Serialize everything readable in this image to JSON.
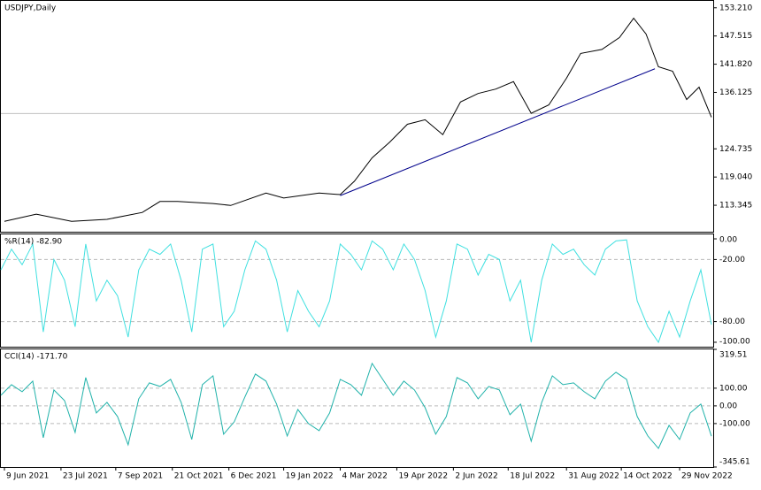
{
  "chart_data": [
    {
      "type": "line",
      "title": "USDJPY,Daily",
      "color": "#000000",
      "x": [
        2,
        20,
        40,
        60,
        80,
        90,
        100,
        120,
        130,
        150,
        160,
        180,
        192,
        200,
        210,
        220,
        230,
        240,
        250,
        260,
        270,
        280,
        290,
        300,
        310,
        320,
        328,
        340,
        350,
        358,
        365,
        372,
        380,
        388,
        395,
        402
      ],
      "values": [
        110.1,
        111.55,
        110.1,
        110.5,
        111.9,
        114.1,
        114.1,
        113.7,
        113.3,
        115.8,
        114.8,
        115.8,
        115.5,
        118.2,
        122.9,
        126.1,
        129.7,
        130.6,
        127.6,
        134.2,
        135.9,
        136.8,
        138.3,
        131.9,
        133.6,
        139.0,
        144.0,
        144.8,
        147.2,
        151.1,
        147.9,
        141.3,
        140.4,
        134.7,
        137.2,
        131.1
      ],
      "trendline": {
        "x": [
          192,
          370
        ],
        "values": [
          115.3,
          140.9
        ],
        "color": "#00008b"
      },
      "current_price": 131.85,
      "xlim": [
        0,
        403
      ],
      "ylim": [
        108.0,
        154.6
      ],
      "yticks": [
        {
          "value": 153.21,
          "label": "153.210"
        },
        147.515,
        {
          "value": 141.82,
          "label": "141.820"
        },
        136.125,
        124.735,
        {
          "value": 119.04,
          "label": "119.040"
        },
        113.345
      ]
    },
    {
      "type": "line",
      "title": "%R(14) -82.90",
      "color": "#40e0e0",
      "x": [
        0,
        6,
        12,
        18,
        24,
        30,
        36,
        42,
        48,
        54,
        60,
        66,
        72,
        78,
        84,
        90,
        96,
        102,
        108,
        114,
        120,
        126,
        132,
        138,
        144,
        150,
        156,
        162,
        168,
        174,
        180,
        186,
        192,
        198,
        204,
        210,
        216,
        222,
        228,
        234,
        240,
        246,
        252,
        258,
        264,
        270,
        276,
        282,
        288,
        294,
        300,
        306,
        312,
        318,
        324,
        330,
        336,
        342,
        348,
        354,
        360,
        366,
        372,
        378,
        384,
        390,
        396,
        402
      ],
      "values": [
        -30,
        -10,
        -25,
        -5,
        -90,
        -20,
        -40,
        -85,
        -5,
        -60,
        -40,
        -55,
        -95,
        -30,
        -10,
        -15,
        -5,
        -40,
        -90,
        -10,
        -5,
        -85,
        -70,
        -30,
        -2,
        -10,
        -40,
        -90,
        -50,
        -70,
        -85,
        -60,
        -5,
        -15,
        -30,
        -2,
        -10,
        -30,
        -5,
        -20,
        -50,
        -95,
        -60,
        -5,
        -10,
        -35,
        -15,
        -20,
        -60,
        -40,
        -100,
        -40,
        -5,
        -15,
        -10,
        -25,
        -35,
        -10,
        -2,
        -1,
        -60,
        -85,
        -100,
        -70,
        -95,
        -60,
        -30,
        -82.9
      ],
      "xlim": [
        0,
        403
      ],
      "ylim": [
        -104.3,
        4.3
      ],
      "yticks": [
        {
          "value": 0,
          "label": "0.00"
        },
        {
          "value": -20,
          "label": "-20.00"
        },
        {
          "value": -80,
          "label": "-80.00"
        },
        {
          "value": -100,
          "label": "-100.00"
        }
      ],
      "grid": [
        -20,
        -80
      ]
    },
    {
      "type": "line",
      "title": "CCI(14) -171.70",
      "color": "#20b2aa",
      "x": [
        0,
        6,
        12,
        18,
        24,
        30,
        36,
        42,
        48,
        54,
        60,
        66,
        72,
        78,
        84,
        90,
        96,
        102,
        108,
        114,
        120,
        126,
        132,
        138,
        144,
        150,
        156,
        162,
        168,
        174,
        180,
        186,
        192,
        198,
        204,
        210,
        216,
        222,
        228,
        234,
        240,
        246,
        252,
        258,
        264,
        270,
        276,
        282,
        288,
        294,
        300,
        306,
        312,
        318,
        324,
        330,
        336,
        342,
        348,
        354,
        360,
        366,
        372,
        378,
        384,
        390,
        396,
        402
      ],
      "values": [
        60,
        120,
        80,
        140,
        -180,
        90,
        30,
        -150,
        160,
        -40,
        20,
        -60,
        -220,
        40,
        130,
        110,
        150,
        20,
        -190,
        120,
        170,
        -160,
        -90,
        50,
        180,
        140,
        10,
        -170,
        -20,
        -100,
        -140,
        -40,
        150,
        120,
        60,
        240,
        150,
        60,
        140,
        90,
        -10,
        -160,
        -60,
        160,
        130,
        40,
        110,
        90,
        -50,
        10,
        -200,
        20,
        170,
        120,
        130,
        80,
        40,
        140,
        190,
        150,
        -60,
        -170,
        -240,
        -110,
        -190,
        -40,
        10,
        -171.7
      ],
      "xlim": [
        0,
        403
      ],
      "ylim": [
        -345.61,
        319.51
      ],
      "yticks": [
        319.51,
        {
          "value": 100,
          "label": "100.00"
        },
        {
          "value": 0,
          "label": "0.00"
        },
        {
          "value": -100,
          "label": "-100.00"
        },
        -345.61
      ],
      "grid": [
        100,
        0,
        -100
      ],
      "xticks": [
        {
          "value": 2,
          "label": "9 Jun 2021"
        },
        {
          "value": 34,
          "label": "23 Jul 2021"
        },
        {
          "value": 65,
          "label": "7 Sep 2021"
        },
        {
          "value": 97,
          "label": "21 Oct 2021"
        },
        {
          "value": 129,
          "label": "6 Dec 2021"
        },
        {
          "value": 160,
          "label": "19 Jan 2022"
        },
        {
          "value": 192,
          "label": "4 Mar 2022"
        },
        {
          "value": 224,
          "label": "19 Apr 2022"
        },
        {
          "value": 256,
          "label": "2 Jun 2022"
        },
        {
          "value": 287,
          "label": "18 Jul 2022"
        },
        {
          "value": 320,
          "label": "31 Aug 2022"
        },
        {
          "value": 351,
          "label": "14 Oct 2022"
        },
        {
          "value": 384,
          "label": "29 Nov 2022"
        }
      ]
    }
  ]
}
